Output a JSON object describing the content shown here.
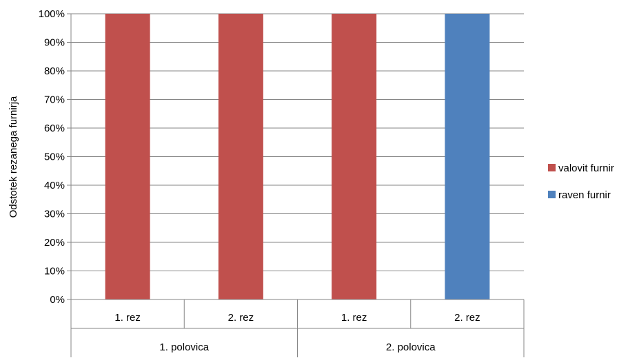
{
  "chart_data": {
    "type": "bar",
    "stacked": true,
    "title": "",
    "xlabel": "",
    "ylabel": "Odstotek rezanega furnirja",
    "ylim": [
      0,
      100
    ],
    "yticks": [
      "0%",
      "10%",
      "20%",
      "30%",
      "40%",
      "50%",
      "60%",
      "70%",
      "80%",
      "90%",
      "100%"
    ],
    "grid": true,
    "legend_position": "right",
    "categories": [
      "1. rez",
      "2. rez",
      "1. rez",
      "2. rez"
    ],
    "groups": [
      {
        "label": "1. polovica",
        "span": 2
      },
      {
        "label": "2. polovica",
        "span": 2
      }
    ],
    "series": [
      {
        "name": "valovit furnir",
        "color": "#c0504d",
        "values": [
          100,
          100,
          100,
          0
        ]
      },
      {
        "name": "raven furnir",
        "color": "#4f81bd",
        "values": [
          0,
          0,
          0,
          100
        ]
      }
    ]
  }
}
